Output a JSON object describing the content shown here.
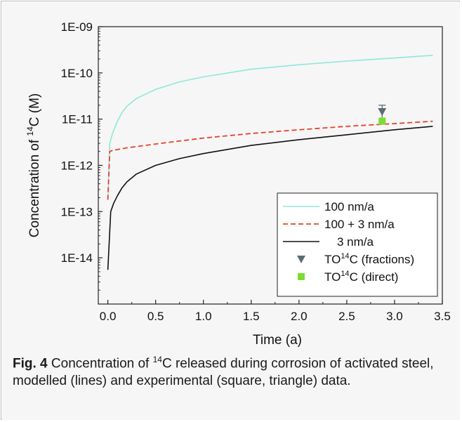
{
  "chart_data": {
    "type": "line",
    "xlabel": "Time (a)",
    "ylabel_prefix": "Concentration of ",
    "ylabel_sup": "14",
    "ylabel_suffix": "C (M)",
    "xlim": [
      -0.1,
      3.5
    ],
    "ylim_log10": [
      -15,
      -9
    ],
    "y_scale": "log",
    "grid": false,
    "legend_position": "bottom-right",
    "x_ticks": [
      "0.0",
      "0.5",
      "1.0",
      "1.5",
      "2.0",
      "2.5",
      "3.0",
      "3.5"
    ],
    "x_tick_values": [
      0,
      0.5,
      1.0,
      1.5,
      2.0,
      2.5,
      3.0,
      3.5
    ],
    "y_ticks": [
      "1E-14",
      "1E-13",
      "1E-12",
      "1E-11",
      "1E-10",
      "1E-09"
    ],
    "y_tick_values": [
      -14,
      -13,
      -12,
      -11,
      -10,
      -9
    ],
    "series": [
      {
        "name": "100 nm/a",
        "color": "#8fe8d8",
        "style": "solid",
        "x": [
          0.0,
          0.02,
          0.05,
          0.1,
          0.15,
          0.2,
          0.3,
          0.5,
          0.75,
          1.0,
          1.5,
          2.0,
          2.5,
          3.0,
          3.4
        ],
        "y": [
          1.8e-13,
          3e-12,
          5e-12,
          9e-12,
          1.4e-11,
          1.9e-11,
          2.8e-11,
          4.4e-11,
          6.4e-11,
          8.2e-11,
          1.2e-10,
          1.5e-10,
          1.8e-10,
          2.1e-10,
          2.4e-10
        ]
      },
      {
        "name": "100 + 3 nm/a",
        "color": "#e8402a",
        "style": "dashed",
        "x": [
          0.0,
          0.02,
          0.05,
          0.1,
          0.2,
          0.5,
          1.0,
          1.5,
          2.0,
          2.5,
          3.0,
          3.4
        ],
        "y": [
          1.8e-13,
          2e-12,
          2.1e-12,
          2.2e-12,
          2.4e-12,
          2.9e-12,
          3.9e-12,
          4.9e-12,
          5.9e-12,
          7e-12,
          8e-12,
          9e-12
        ]
      },
      {
        "name": "3 nm/a",
        "color": "#111111",
        "style": "solid",
        "x": [
          0.0,
          0.03,
          0.06,
          0.1,
          0.15,
          0.2,
          0.3,
          0.5,
          0.75,
          1.0,
          1.5,
          2.0,
          2.5,
          3.0,
          3.4
        ],
        "y": [
          5.5e-15,
          1e-13,
          1.5e-13,
          2.2e-13,
          3.3e-13,
          4.4e-13,
          6.5e-13,
          1e-12,
          1.4e-12,
          1.8e-12,
          2.7e-12,
          3.6e-12,
          4.6e-12,
          5.9e-12,
          7e-12
        ]
      }
    ],
    "points": [
      {
        "name_prefix": "TO",
        "name_sup": "14",
        "name_suffix": "C (fractions)",
        "marker": "triangle-down",
        "color": "#5a6e72",
        "x": 2.87,
        "y": 1.45e-11,
        "err_high": 2e-11,
        "err_low": 9e-12
      },
      {
        "name_prefix": "TO",
        "name_sup": "14",
        "name_suffix": "C (direct)",
        "marker": "square",
        "color": "#7cdc34",
        "x": 2.87,
        "y": 9e-12,
        "err_high": 1.05e-11,
        "err_low": 7.8e-12
      }
    ]
  },
  "caption": {
    "label": "Fig. 4",
    "text_before": " Concentration of ",
    "sup": "14",
    "text_after": "C released during corrosion of activated steel, modelled (lines) and experimental (square, triangle) data."
  }
}
